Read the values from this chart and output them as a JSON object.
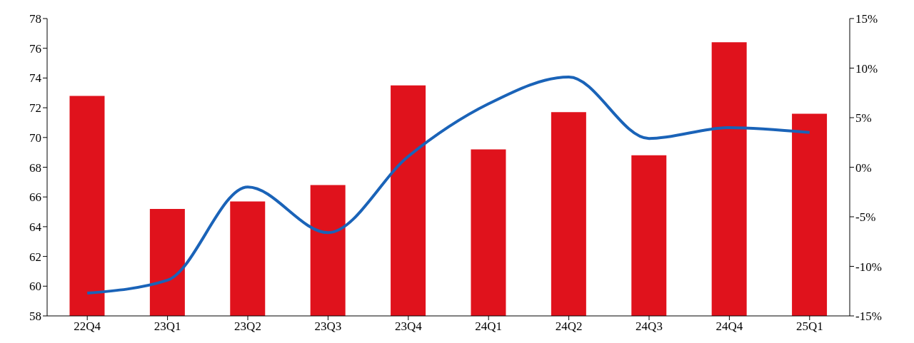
{
  "chart_data": {
    "type": "bar",
    "categories": [
      "22Q4",
      "23Q1",
      "23Q2",
      "23Q3",
      "23Q4",
      "24Q1",
      "24Q2",
      "24Q3",
      "24Q4",
      "25Q1"
    ],
    "series": [
      {
        "color": "#e0121c",
        "values": [
          72.8,
          65.2,
          65.7,
          66.8,
          73.5,
          69.2,
          71.7,
          68.8,
          76.4,
          71.6
        ]
      },
      {
        "type": "line",
        "axis": "y2",
        "color": "#1a63b8",
        "values": [
          -12.7,
          -11.4,
          -2.0,
          -6.6,
          1.1,
          6.4,
          9.1,
          2.9,
          4.0,
          3.5
        ]
      }
    ],
    "ylim": [
      58,
      78
    ],
    "yticks": [
      58,
      60,
      62,
      64,
      66,
      68,
      70,
      72,
      74,
      76,
      78
    ],
    "y2lim": [
      -15,
      15
    ],
    "y2ticks": [
      {
        "value": -15,
        "label": "-15%"
      },
      {
        "value": -10,
        "label": "-10%"
      },
      {
        "value": -5,
        "label": "-5%"
      },
      {
        "value": 0,
        "label": "0%"
      },
      {
        "value": 5,
        "label": "5%"
      },
      {
        "value": 10,
        "label": "10%"
      },
      {
        "value": 15,
        "label": "15%"
      }
    ],
    "grid": false,
    "legend": false
  }
}
